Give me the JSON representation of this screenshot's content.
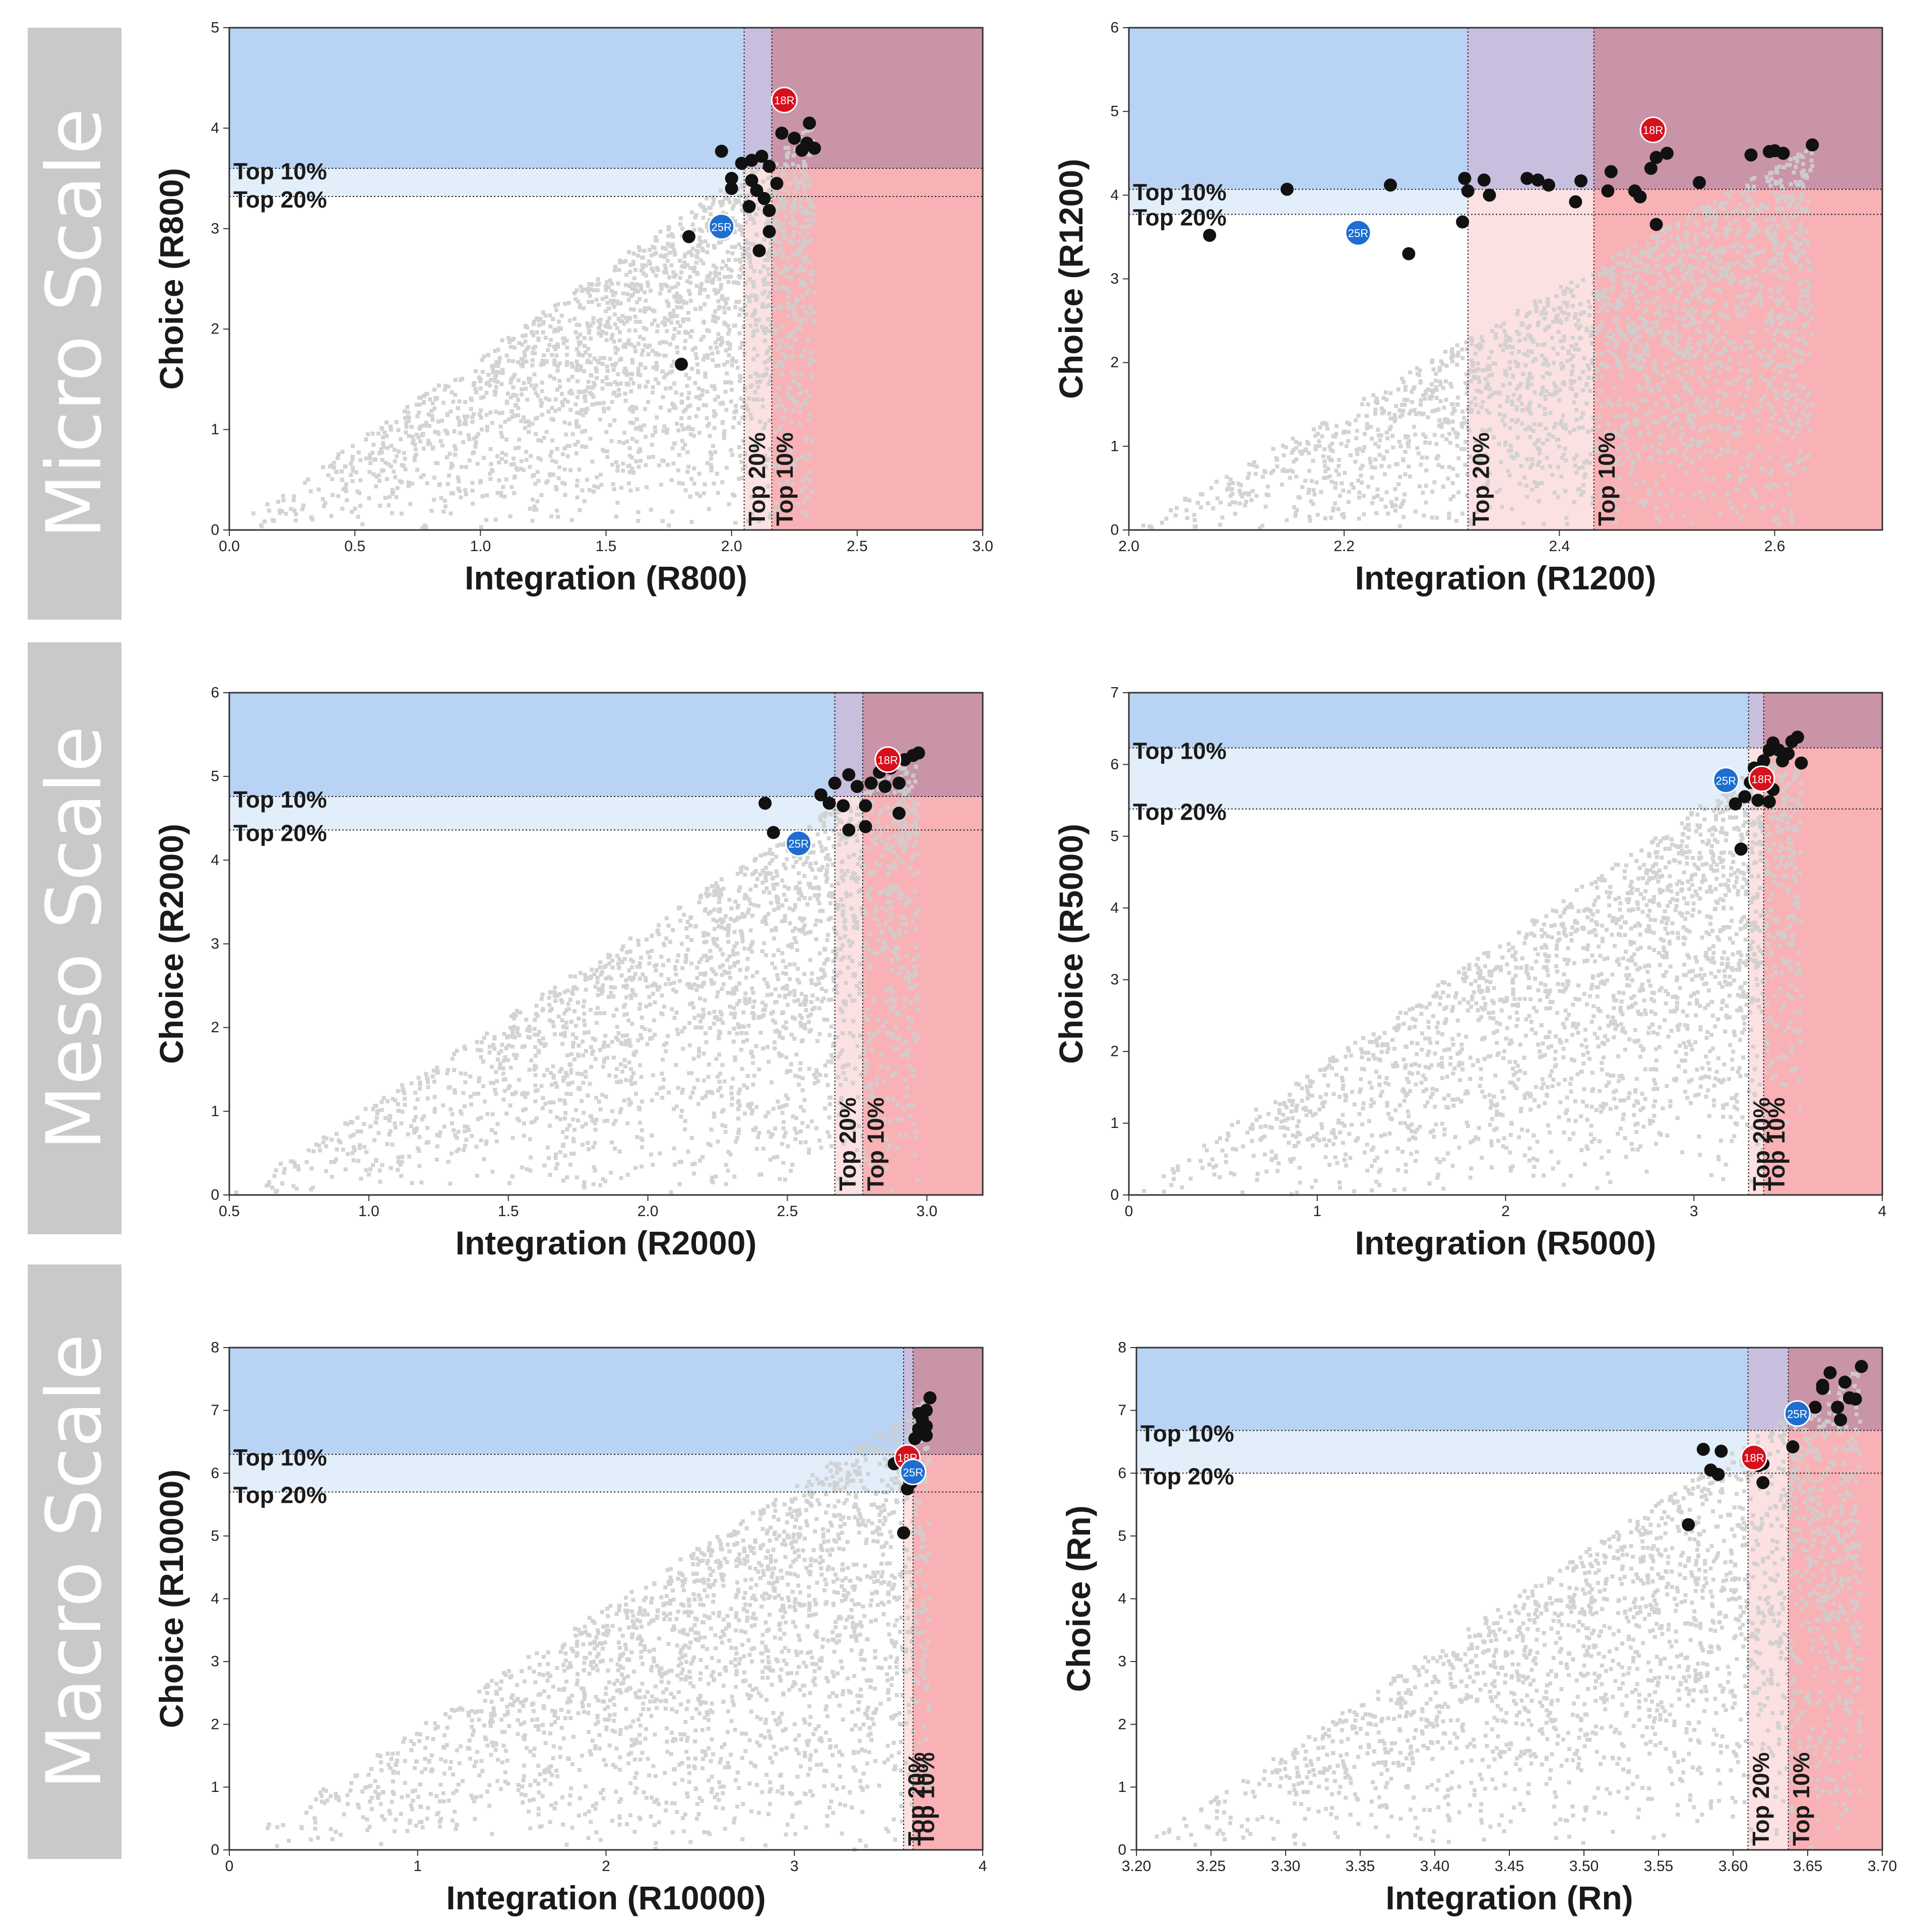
{
  "scales": [
    {
      "name": "Micro Scale"
    },
    {
      "name": "Meso Scale"
    },
    {
      "name": "Macro Scale"
    }
  ],
  "colors": {
    "panel_gray": "#c9c9cb",
    "cloud_gray": "#cfcfcf",
    "blue_zone": "#b9d3f4",
    "blue_light": "#e3eefb",
    "red_zone": "#f8b2b6",
    "red_light": "#fce1e2",
    "purple_zone": "#c993a8",
    "lavender_zone": "#c8bfdf",
    "point_dark": "#111111",
    "marker_red": "#d6101d",
    "marker_blue": "#1e6dd0"
  },
  "chart_data": [
    {
      "type": "scatter",
      "xlabel": "Integration (R800)",
      "ylabel": "Choice (R800)",
      "xlim": [
        0,
        3
      ],
      "ylim": [
        0,
        5
      ],
      "xticks": [
        0,
        0.5,
        1,
        1.5,
        2,
        2.5,
        3
      ],
      "xtick_labels": [
        "0.0",
        "0.5",
        "1.0",
        "1.5",
        "2.0",
        "2.5",
        "3.0"
      ],
      "yticks": [
        0,
        1,
        2,
        3,
        4,
        5
      ],
      "ytick_labels": [
        "0",
        "1",
        "2",
        "3",
        "4",
        "5"
      ],
      "thresholds": {
        "x_top20": 2.05,
        "x_top10": 2.16,
        "y_top10": 3.6,
        "y_top20": 3.32
      },
      "threshold_labels": {
        "top10": "Top 10%",
        "top20": "Top 20%"
      },
      "points": [
        [
          1.96,
          3.77
        ],
        [
          2.0,
          3.5
        ],
        [
          2.04,
          3.65
        ],
        [
          2.08,
          3.68
        ],
        [
          2.12,
          3.72
        ],
        [
          2.15,
          3.62
        ],
        [
          2.18,
          3.45
        ],
        [
          2.25,
          3.9
        ],
        [
          2.28,
          3.78
        ],
        [
          2.3,
          3.85
        ],
        [
          2.31,
          4.05
        ],
        [
          2.33,
          3.8
        ],
        [
          2.08,
          3.48
        ],
        [
          2.1,
          3.38
        ],
        [
          2.13,
          3.3
        ],
        [
          2.15,
          3.18
        ],
        [
          2.07,
          3.22
        ],
        [
          2.15,
          2.97
        ],
        [
          2.11,
          2.78
        ],
        [
          1.83,
          2.92
        ],
        [
          1.8,
          1.65
        ],
        [
          2.0,
          3.4
        ],
        [
          2.2,
          3.95
        ]
      ],
      "markers": [
        {
          "label": "18R",
          "x": 2.21,
          "y": 4.28,
          "color": "red"
        },
        {
          "label": "25R",
          "x": 1.96,
          "y": 3.02,
          "color": "blue"
        }
      ]
    },
    {
      "type": "scatter",
      "xlabel": "Integration (R1200)",
      "ylabel": "Choice (R1200)",
      "xlim": [
        2.0,
        2.7
      ],
      "ylim": [
        0,
        6
      ],
      "xticks": [
        2.0,
        2.2,
        2.4,
        2.6
      ],
      "xtick_labels": [
        "2.0",
        "2.2",
        "2.4",
        "2.6"
      ],
      "yticks": [
        0,
        1,
        2,
        3,
        4,
        5,
        6
      ],
      "ytick_labels": [
        "0",
        "1",
        "2",
        "3",
        "4",
        "5",
        "6"
      ],
      "thresholds": {
        "x_top20": 2.315,
        "x_top10": 2.432,
        "y_top10": 4.07,
        "y_top20": 3.77
      },
      "threshold_labels": {
        "top10": "Top 10%",
        "top20": "Top 20%"
      },
      "points": [
        [
          2.075,
          3.52
        ],
        [
          2.147,
          4.07
        ],
        [
          2.243,
          4.12
        ],
        [
          2.26,
          3.3
        ],
        [
          2.31,
          3.68
        ],
        [
          2.312,
          4.2
        ],
        [
          2.315,
          4.05
        ],
        [
          2.33,
          4.18
        ],
        [
          2.335,
          4.0
        ],
        [
          2.37,
          4.2
        ],
        [
          2.38,
          4.18
        ],
        [
          2.39,
          4.12
        ],
        [
          2.415,
          3.92
        ],
        [
          2.42,
          4.17
        ],
        [
          2.445,
          4.05
        ],
        [
          2.448,
          4.28
        ],
        [
          2.47,
          4.05
        ],
        [
          2.475,
          3.98
        ],
        [
          2.485,
          4.32
        ],
        [
          2.49,
          4.45
        ],
        [
          2.5,
          4.5
        ],
        [
          2.49,
          3.65
        ],
        [
          2.53,
          4.15
        ],
        [
          2.578,
          4.48
        ],
        [
          2.595,
          4.52
        ],
        [
          2.6,
          4.53
        ],
        [
          2.608,
          4.5
        ],
        [
          2.635,
          4.6
        ]
      ],
      "markers": [
        {
          "label": "18R",
          "x": 2.487,
          "y": 4.78,
          "color": "red"
        },
        {
          "label": "25R",
          "x": 2.213,
          "y": 3.55,
          "color": "blue"
        }
      ]
    },
    {
      "type": "scatter",
      "xlabel": "Integration (R2000)",
      "ylabel": "Choice (R2000)",
      "xlim": [
        0.5,
        3.2
      ],
      "ylim": [
        0,
        6
      ],
      "xticks": [
        0.5,
        1.0,
        1.5,
        2.0,
        2.5,
        3.0
      ],
      "xtick_labels": [
        "0.5",
        "1.0",
        "1.5",
        "2.0",
        "2.5",
        "3.0"
      ],
      "yticks": [
        0,
        1,
        2,
        3,
        4,
        5,
        6
      ],
      "ytick_labels": [
        "0",
        "1",
        "2",
        "3",
        "4",
        "5",
        "6"
      ],
      "thresholds": {
        "x_top20": 2.67,
        "x_top10": 2.77,
        "y_top10": 4.76,
        "y_top20": 4.36
      },
      "threshold_labels": {
        "top10": "Top 10%",
        "top20": "Top 20%"
      },
      "points": [
        [
          2.42,
          4.68
        ],
        [
          2.45,
          4.33
        ],
        [
          2.62,
          4.78
        ],
        [
          2.65,
          4.68
        ],
        [
          2.67,
          4.92
        ],
        [
          2.7,
          4.65
        ],
        [
          2.72,
          5.02
        ],
        [
          2.72,
          4.36
        ],
        [
          2.75,
          4.88
        ],
        [
          2.78,
          4.4
        ],
        [
          2.78,
          4.65
        ],
        [
          2.8,
          4.92
        ],
        [
          2.83,
          5.05
        ],
        [
          2.85,
          4.88
        ],
        [
          2.87,
          5.1
        ],
        [
          2.9,
          4.92
        ],
        [
          2.9,
          4.56
        ],
        [
          2.92,
          5.2
        ],
        [
          2.95,
          5.25
        ],
        [
          2.97,
          5.28
        ]
      ],
      "markers": [
        {
          "label": "18R",
          "x": 2.86,
          "y": 5.2,
          "color": "red"
        },
        {
          "label": "25R",
          "x": 2.54,
          "y": 4.2,
          "color": "blue"
        }
      ]
    },
    {
      "type": "scatter",
      "xlabel": "Integration (R5000)",
      "ylabel": "Choice (R5000)",
      "xlim": [
        0,
        4
      ],
      "ylim": [
        0,
        7
      ],
      "xticks": [
        0,
        1,
        2,
        3,
        4
      ],
      "xtick_labels": [
        "0",
        "1",
        "2",
        "3",
        "4"
      ],
      "yticks": [
        0,
        1,
        2,
        3,
        4,
        5,
        6,
        7
      ],
      "ytick_labels": [
        "0",
        "1",
        "2",
        "3",
        "4",
        "5",
        "6",
        "7"
      ],
      "thresholds": {
        "x_top20": 3.29,
        "x_top10": 3.37,
        "y_top10": 6.23,
        "y_top20": 5.38
      },
      "threshold_labels": {
        "top10": "Top 10%",
        "top20": "Top 20%"
      },
      "points": [
        [
          3.25,
          4.82
        ],
        [
          3.22,
          5.45
        ],
        [
          3.27,
          5.55
        ],
        [
          3.3,
          5.75
        ],
        [
          3.32,
          5.95
        ],
        [
          3.34,
          5.5
        ],
        [
          3.37,
          6.05
        ],
        [
          3.4,
          6.2
        ],
        [
          3.42,
          6.3
        ],
        [
          3.45,
          6.2
        ],
        [
          3.47,
          6.05
        ],
        [
          3.5,
          6.15
        ],
        [
          3.52,
          6.32
        ],
        [
          3.55,
          6.38
        ],
        [
          3.57,
          6.02
        ],
        [
          3.4,
          5.48
        ],
        [
          3.42,
          5.65
        ],
        [
          3.35,
          5.9
        ]
      ],
      "markers": [
        {
          "label": "18R",
          "x": 3.36,
          "y": 5.8,
          "color": "red"
        },
        {
          "label": "25R",
          "x": 3.17,
          "y": 5.78,
          "color": "blue"
        }
      ]
    },
    {
      "type": "scatter",
      "xlabel": "Integration (R10000)",
      "ylabel": "Choice (R10000)",
      "xlim": [
        0,
        4
      ],
      "ylim": [
        0,
        8
      ],
      "xticks": [
        0,
        1,
        2,
        3,
        4
      ],
      "xtick_labels": [
        "0",
        "1",
        "2",
        "3",
        "4"
      ],
      "yticks": [
        0,
        1,
        2,
        3,
        4,
        5,
        6,
        7,
        8
      ],
      "ytick_labels": [
        "0",
        "1",
        "2",
        "3",
        "4",
        "5",
        "6",
        "7",
        "8"
      ],
      "thresholds": {
        "x_top20": 3.58,
        "x_top10": 3.63,
        "y_top10": 6.3,
        "y_top20": 5.7
      },
      "threshold_labels": {
        "top10": "Top 10%",
        "top20": "Top 20%"
      },
      "points": [
        [
          3.53,
          6.15
        ],
        [
          3.58,
          5.05
        ],
        [
          3.6,
          5.75
        ],
        [
          3.62,
          5.85
        ],
        [
          3.62,
          6.25
        ],
        [
          3.64,
          6.55
        ],
        [
          3.66,
          6.7
        ],
        [
          3.68,
          6.85
        ],
        [
          3.7,
          6.75
        ],
        [
          3.7,
          7.0
        ],
        [
          3.72,
          7.2
        ],
        [
          3.7,
          6.6
        ],
        [
          3.68,
          6.65
        ],
        [
          3.66,
          6.95
        ]
      ],
      "markers": [
        {
          "label": "18R",
          "x": 3.6,
          "y": 6.25,
          "color": "red"
        },
        {
          "label": "25R",
          "x": 3.63,
          "y": 6.02,
          "color": "blue"
        }
      ]
    },
    {
      "type": "scatter",
      "xlabel": "Integration (Rn)",
      "ylabel": "Choice (Rn)",
      "xlim": [
        3.2,
        3.7
      ],
      "ylim": [
        0,
        8
      ],
      "xticks": [
        3.2,
        3.25,
        3.3,
        3.35,
        3.4,
        3.45,
        3.5,
        3.55,
        3.6,
        3.65,
        3.7
      ],
      "xtick_labels": [
        "3.20",
        "3.25",
        "3.30",
        "3.35",
        "3.40",
        "3.45",
        "3.50",
        "3.55",
        "3.60",
        "3.65",
        "3.70"
      ],
      "yticks": [
        0,
        1,
        2,
        3,
        4,
        5,
        6,
        7,
        8
      ],
      "ytick_labels": [
        "0",
        "1",
        "2",
        "3",
        "4",
        "5",
        "6",
        "7",
        "8"
      ],
      "thresholds": {
        "x_top20": 3.61,
        "x_top10": 3.637,
        "y_top10": 6.68,
        "y_top20": 6.0
      },
      "threshold_labels": {
        "top10": "Top 10%",
        "top20": "Top 20%"
      },
      "points": [
        [
          3.57,
          5.18
        ],
        [
          3.58,
          6.38
        ],
        [
          3.585,
          6.05
        ],
        [
          3.59,
          5.98
        ],
        [
          3.592,
          6.35
        ],
        [
          3.617,
          6.12
        ],
        [
          3.62,
          6.15
        ],
        [
          3.62,
          5.85
        ],
        [
          3.64,
          6.42
        ],
        [
          3.655,
          7.05
        ],
        [
          3.66,
          7.35
        ],
        [
          3.665,
          7.6
        ],
        [
          3.67,
          7.05
        ],
        [
          3.672,
          6.85
        ],
        [
          3.678,
          7.2
        ],
        [
          3.682,
          7.18
        ],
        [
          3.686,
          7.7
        ],
        [
          3.66,
          7.4
        ],
        [
          3.675,
          7.45
        ]
      ],
      "markers": [
        {
          "label": "18R",
          "x": 3.614,
          "y": 6.25,
          "color": "red"
        },
        {
          "label": "25R",
          "x": 3.643,
          "y": 6.95,
          "color": "blue"
        }
      ]
    }
  ]
}
